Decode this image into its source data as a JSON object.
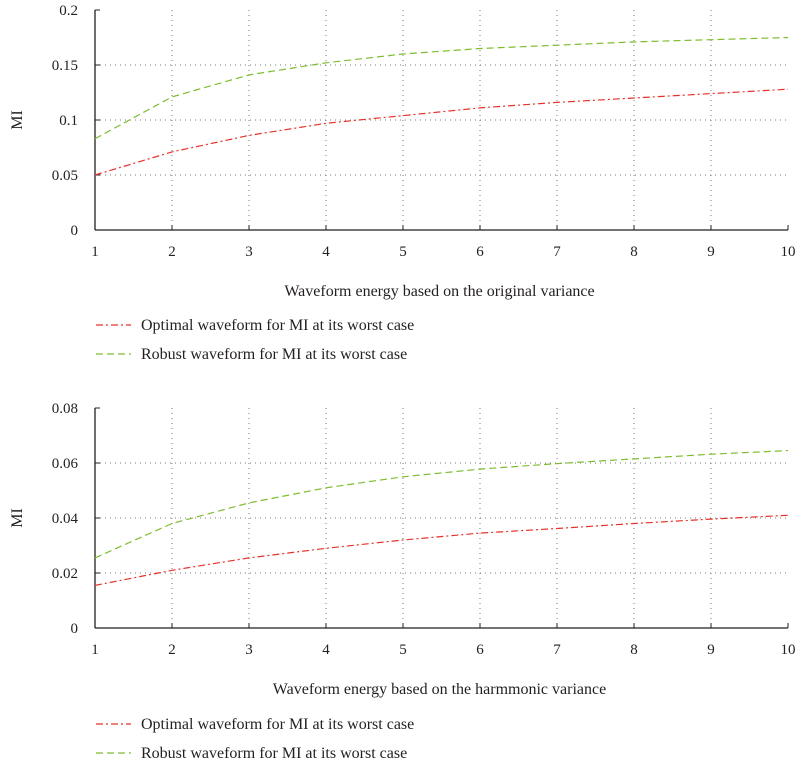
{
  "chart_data": [
    {
      "type": "line",
      "title": "",
      "xlabel": "Waveform energy based on the original variance",
      "ylabel": "MI",
      "xlim": [
        1,
        10
      ],
      "ylim": [
        0,
        0.2
      ],
      "x_ticks": [
        1,
        2,
        3,
        4,
        5,
        6,
        7,
        8,
        9,
        10
      ],
      "y_ticks": [
        0,
        0.05,
        0.1,
        0.15,
        0.2
      ],
      "y_tick_labels": [
        "0",
        "0.05",
        "0.1",
        "0.15",
        "0.2"
      ],
      "grid": true,
      "legend_position": "below",
      "x": [
        1,
        2,
        3,
        4,
        5,
        6,
        7,
        8,
        9,
        10
      ],
      "series": [
        {
          "name": "Optimal waveform for MI at its worst case",
          "color": "#e8312a",
          "dash": "dashdot",
          "values": [
            0.05,
            0.071,
            0.086,
            0.097,
            0.104,
            0.111,
            0.116,
            0.12,
            0.124,
            0.128
          ]
        },
        {
          "name": "Robust waveform for MI at its worst case",
          "color": "#7dbd2f",
          "dash": "dash",
          "values": [
            0.083,
            0.121,
            0.141,
            0.152,
            0.16,
            0.165,
            0.168,
            0.171,
            0.173,
            0.175
          ]
        }
      ]
    },
    {
      "type": "line",
      "title": "",
      "xlabel": "Waveform energy based on the harmmonic variance",
      "ylabel": "MI",
      "xlim": [
        1,
        10
      ],
      "ylim": [
        0,
        0.08
      ],
      "x_ticks": [
        1,
        2,
        3,
        4,
        5,
        6,
        7,
        8,
        9,
        10
      ],
      "y_ticks": [
        0,
        0.02,
        0.04,
        0.06,
        0.08
      ],
      "y_tick_labels": [
        "0",
        "0.02",
        "0.04",
        "0.06",
        "0.08"
      ],
      "grid": true,
      "legend_position": "below",
      "x": [
        1,
        2,
        3,
        4,
        5,
        6,
        7,
        8,
        9,
        10
      ],
      "series": [
        {
          "name": "Optimal waveform for MI at its worst case",
          "color": "#e8312a",
          "dash": "dashdot",
          "values": [
            0.0155,
            0.021,
            0.0255,
            0.029,
            0.032,
            0.0345,
            0.0362,
            0.038,
            0.0396,
            0.041
          ]
        },
        {
          "name": "Robust waveform for MI at its worst case",
          "color": "#7dbd2f",
          "dash": "dash",
          "values": [
            0.0255,
            0.038,
            0.0455,
            0.051,
            0.055,
            0.0578,
            0.0598,
            0.0615,
            0.0632,
            0.0645
          ]
        }
      ]
    }
  ]
}
